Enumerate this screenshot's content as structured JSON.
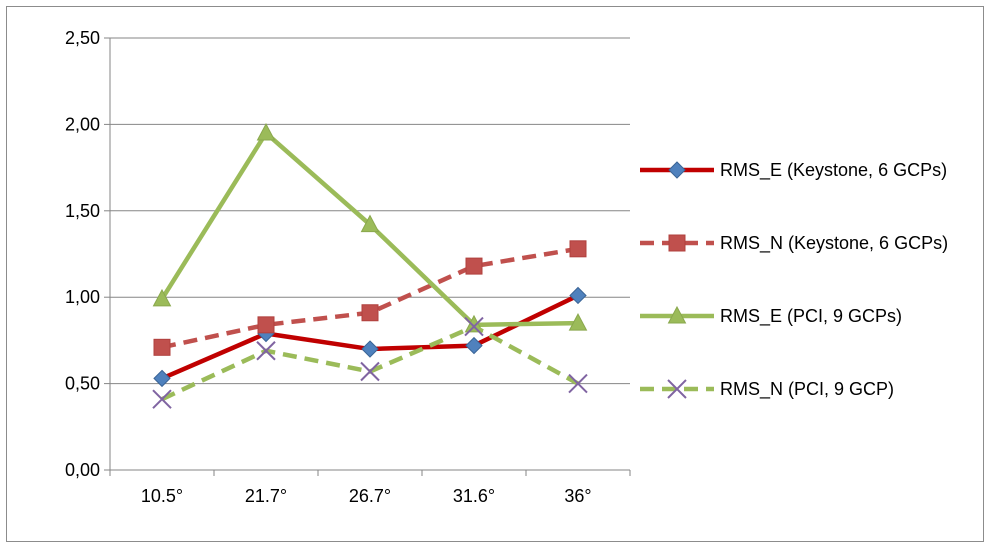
{
  "chart_data": {
    "type": "line",
    "categories": [
      "10.5°",
      "21.7°",
      "26.7°",
      "31.6°",
      "36°"
    ],
    "ylim": [
      0,
      2.5
    ],
    "yticks": [
      "0,00",
      "0,50",
      "1,00",
      "1,50",
      "2,00",
      "2,50"
    ],
    "grid": true,
    "legend_position": "right",
    "series": [
      {
        "name": "RMS_E (Keystone, 6 GCPs)",
        "values": [
          0.53,
          0.79,
          0.7,
          0.72,
          1.01
        ],
        "color": "#c00000",
        "dash": "solid",
        "marker": "diamond",
        "marker_color": "#4f81bd"
      },
      {
        "name": "RMS_N (Keystone, 6 GCPs)",
        "values": [
          0.71,
          0.84,
          0.91,
          1.18,
          1.28
        ],
        "color": "#c0504d",
        "dash": "dashed",
        "marker": "square",
        "marker_color": "#c0504d"
      },
      {
        "name": "RMS_E (PCI, 9 GCPs)",
        "values": [
          0.99,
          1.95,
          1.42,
          0.84,
          0.85
        ],
        "color": "#9bbb59",
        "dash": "solid",
        "marker": "triangle",
        "marker_color": "#9bbb59"
      },
      {
        "name": "RMS_N (PCI, 9 GCP)",
        "values": [
          0.41,
          0.69,
          0.57,
          0.83,
          0.5
        ],
        "color": "#9bbb59",
        "dash": "dashed",
        "marker": "x",
        "marker_color": "#8064a2"
      }
    ]
  }
}
